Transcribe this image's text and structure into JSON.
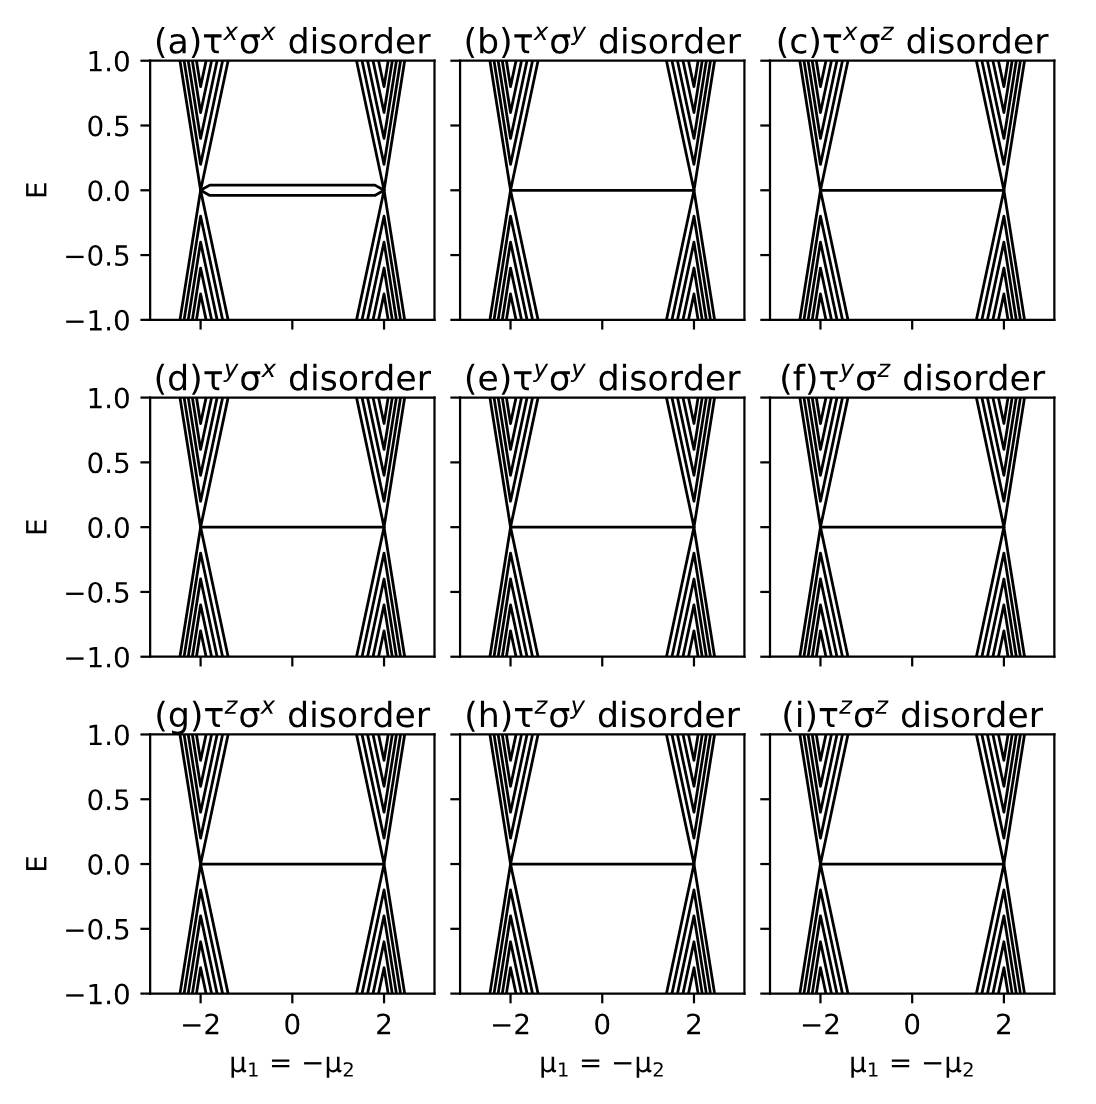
{
  "chart_data": [
    {
      "type": "line",
      "title": "(a)τ$^{x}$σ$^{x}$ disorder",
      "ylabel": "E",
      "tick_labels": "y",
      "xlim": [
        -3.1,
        3.1
      ],
      "ylim": [
        -1,
        1
      ],
      "xticks": [
        -2,
        0,
        2
      ],
      "yticks": [
        {
          "value": -1,
          "label": "−1.0"
        },
        {
          "value": -0.5,
          "label": "−0.5"
        },
        {
          "value": 0,
          "label": "0.0"
        },
        {
          "value": 0.5,
          "label": "0.5"
        },
        {
          "value": 1,
          "label": "1.0"
        }
      ],
      "series": [
        {
          "color": "#000000",
          "x": [
            -2.45,
            -2,
            -1.4,
            null,
            -2.36,
            -2,
            -1.52,
            null,
            -2.27,
            -2,
            -1.64,
            null,
            -2.18,
            -2,
            -1.76,
            null,
            -2.09,
            -2,
            -1.88
          ],
          "values": [
            1,
            0,
            1,
            null,
            1,
            0.2,
            1,
            null,
            1,
            0.4,
            1,
            null,
            1,
            0.6,
            1,
            null,
            1,
            0.8,
            1
          ]
        },
        {
          "color": "#000000",
          "x": [
            -2.45,
            -2,
            -1.4,
            null,
            -2.36,
            -2,
            -1.52,
            null,
            -2.27,
            -2,
            -1.64,
            null,
            -2.18,
            -2,
            -1.76,
            null,
            -2.09,
            -2,
            -1.88
          ],
          "values": [
            -1,
            0,
            -1,
            null,
            -1,
            -0.2,
            -1,
            null,
            -1,
            -0.4,
            -1,
            null,
            -1,
            -0.6,
            -1,
            null,
            -1,
            -0.8,
            -1
          ]
        },
        {
          "color": "#000000",
          "x": [
            1.4,
            2,
            2.45,
            null,
            1.52,
            2,
            2.36,
            null,
            1.64,
            2,
            2.27,
            null,
            1.76,
            2,
            2.18,
            null,
            1.88,
            2,
            2.09
          ],
          "values": [
            1,
            0,
            1,
            null,
            1,
            0.2,
            1,
            null,
            1,
            0.4,
            1,
            null,
            1,
            0.6,
            1,
            null,
            1,
            0.8,
            1
          ]
        },
        {
          "color": "#000000",
          "x": [
            1.4,
            2,
            2.45,
            null,
            1.52,
            2,
            2.36,
            null,
            1.64,
            2,
            2.27,
            null,
            1.76,
            2,
            2.18,
            null,
            1.88,
            2,
            2.09
          ],
          "values": [
            -1,
            0,
            -1,
            null,
            -1,
            -0.2,
            -1,
            null,
            -1,
            -0.4,
            -1,
            null,
            -1,
            -0.6,
            -1,
            null,
            -1,
            -0.8,
            -1
          ]
        },
        {
          "color": "#000000",
          "x": [
            -2,
            -1.8,
            0,
            1.8,
            2
          ],
          "values": [
            0,
            0.04,
            0.04,
            0.04,
            0
          ]
        },
        {
          "color": "#000000",
          "x": [
            -2,
            -1.8,
            0,
            1.8,
            2
          ],
          "values": [
            0,
            -0.04,
            -0.04,
            -0.04,
            0
          ]
        }
      ]
    },
    {
      "type": "line",
      "title": "(b)τ$^{x}$σ$^{y}$ disorder",
      "tick_labels": false,
      "xlim": [
        -3.1,
        3.1
      ],
      "ylim": [
        -1,
        1
      ],
      "xticks": [
        -2,
        0,
        2
      ],
      "yticks": [
        -1,
        -0.5,
        0,
        0.5,
        1
      ],
      "series": [
        {
          "color": "#000000",
          "x": [
            -2.45,
            -2,
            -1.4,
            null,
            -2.36,
            -2,
            -1.52,
            null,
            -2.27,
            -2,
            -1.64,
            null,
            -2.18,
            -2,
            -1.76,
            null,
            -2.09,
            -2,
            -1.88
          ],
          "values": [
            1,
            0,
            1,
            null,
            1,
            0.2,
            1,
            null,
            1,
            0.4,
            1,
            null,
            1,
            0.6,
            1,
            null,
            1,
            0.8,
            1
          ]
        },
        {
          "color": "#000000",
          "x": [
            -2.45,
            -2,
            -1.4,
            null,
            -2.36,
            -2,
            -1.52,
            null,
            -2.27,
            -2,
            -1.64,
            null,
            -2.18,
            -2,
            -1.76,
            null,
            -2.09,
            -2,
            -1.88
          ],
          "values": [
            -1,
            0,
            -1,
            null,
            -1,
            -0.2,
            -1,
            null,
            -1,
            -0.4,
            -1,
            null,
            -1,
            -0.6,
            -1,
            null,
            -1,
            -0.8,
            -1
          ]
        },
        {
          "color": "#000000",
          "x": [
            1.4,
            2,
            2.45,
            null,
            1.52,
            2,
            2.36,
            null,
            1.64,
            2,
            2.27,
            null,
            1.76,
            2,
            2.18,
            null,
            1.88,
            2,
            2.09
          ],
          "values": [
            1,
            0,
            1,
            null,
            1,
            0.2,
            1,
            null,
            1,
            0.4,
            1,
            null,
            1,
            0.6,
            1,
            null,
            1,
            0.8,
            1
          ]
        },
        {
          "color": "#000000",
          "x": [
            1.4,
            2,
            2.45,
            null,
            1.52,
            2,
            2.36,
            null,
            1.64,
            2,
            2.27,
            null,
            1.76,
            2,
            2.18,
            null,
            1.88,
            2,
            2.09
          ],
          "values": [
            -1,
            0,
            -1,
            null,
            -1,
            -0.2,
            -1,
            null,
            -1,
            -0.4,
            -1,
            null,
            -1,
            -0.6,
            -1,
            null,
            -1,
            -0.8,
            -1
          ]
        },
        {
          "color": "#000000",
          "x": [
            -2,
            2
          ],
          "values": [
            0,
            0
          ]
        }
      ]
    },
    {
      "type": "line",
      "title": "(c)τ$^{x}$σ$^{z}$ disorder",
      "tick_labels": false,
      "xlim": [
        -3.1,
        3.1
      ],
      "ylim": [
        -1,
        1
      ],
      "xticks": [
        -2,
        0,
        2
      ],
      "yticks": [
        -1,
        -0.5,
        0,
        0.5,
        1
      ],
      "series": [
        {
          "color": "#000000",
          "x": [
            -2.45,
            -2,
            -1.4,
            null,
            -2.36,
            -2,
            -1.52,
            null,
            -2.27,
            -2,
            -1.64,
            null,
            -2.18,
            -2,
            -1.76,
            null,
            -2.09,
            -2,
            -1.88
          ],
          "values": [
            1,
            0,
            1,
            null,
            1,
            0.2,
            1,
            null,
            1,
            0.4,
            1,
            null,
            1,
            0.6,
            1,
            null,
            1,
            0.8,
            1
          ]
        },
        {
          "color": "#000000",
          "x": [
            -2.45,
            -2,
            -1.4,
            null,
            -2.36,
            -2,
            -1.52,
            null,
            -2.27,
            -2,
            -1.64,
            null,
            -2.18,
            -2,
            -1.76,
            null,
            -2.09,
            -2,
            -1.88
          ],
          "values": [
            -1,
            0,
            -1,
            null,
            -1,
            -0.2,
            -1,
            null,
            -1,
            -0.4,
            -1,
            null,
            -1,
            -0.6,
            -1,
            null,
            -1,
            -0.8,
            -1
          ]
        },
        {
          "color": "#000000",
          "x": [
            1.4,
            2,
            2.45,
            null,
            1.52,
            2,
            2.36,
            null,
            1.64,
            2,
            2.27,
            null,
            1.76,
            2,
            2.18,
            null,
            1.88,
            2,
            2.09
          ],
          "values": [
            1,
            0,
            1,
            null,
            1,
            0.2,
            1,
            null,
            1,
            0.4,
            1,
            null,
            1,
            0.6,
            1,
            null,
            1,
            0.8,
            1
          ]
        },
        {
          "color": "#000000",
          "x": [
            1.4,
            2,
            2.45,
            null,
            1.52,
            2,
            2.36,
            null,
            1.64,
            2,
            2.27,
            null,
            1.76,
            2,
            2.18,
            null,
            1.88,
            2,
            2.09
          ],
          "values": [
            -1,
            0,
            -1,
            null,
            -1,
            -0.2,
            -1,
            null,
            -1,
            -0.4,
            -1,
            null,
            -1,
            -0.6,
            -1,
            null,
            -1,
            -0.8,
            -1
          ]
        },
        {
          "color": "#000000",
          "x": [
            -2,
            2
          ],
          "values": [
            0,
            0
          ]
        }
      ]
    },
    {
      "type": "line",
      "title": "(d)τ$^{y}$σ$^{x}$ disorder",
      "ylabel": "E",
      "tick_labels": "y",
      "xlim": [
        -3.1,
        3.1
      ],
      "ylim": [
        -1,
        1
      ],
      "xticks": [
        -2,
        0,
        2
      ],
      "yticks": [
        {
          "value": -1,
          "label": "−1.0"
        },
        {
          "value": -0.5,
          "label": "−0.5"
        },
        {
          "value": 0,
          "label": "0.0"
        },
        {
          "value": 0.5,
          "label": "0.5"
        },
        {
          "value": 1,
          "label": "1.0"
        }
      ],
      "series": [
        {
          "color": "#000000",
          "x": [
            -2.45,
            -2,
            -1.4,
            null,
            -2.36,
            -2,
            -1.52,
            null,
            -2.27,
            -2,
            -1.64,
            null,
            -2.18,
            -2,
            -1.76,
            null,
            -2.09,
            -2,
            -1.88
          ],
          "values": [
            1,
            0,
            1,
            null,
            1,
            0.2,
            1,
            null,
            1,
            0.4,
            1,
            null,
            1,
            0.6,
            1,
            null,
            1,
            0.8,
            1
          ]
        },
        {
          "color": "#000000",
          "x": [
            -2.45,
            -2,
            -1.4,
            null,
            -2.36,
            -2,
            -1.52,
            null,
            -2.27,
            -2,
            -1.64,
            null,
            -2.18,
            -2,
            -1.76,
            null,
            -2.09,
            -2,
            -1.88
          ],
          "values": [
            -1,
            0,
            -1,
            null,
            -1,
            -0.2,
            -1,
            null,
            -1,
            -0.4,
            -1,
            null,
            -1,
            -0.6,
            -1,
            null,
            -1,
            -0.8,
            -1
          ]
        },
        {
          "color": "#000000",
          "x": [
            1.4,
            2,
            2.45,
            null,
            1.52,
            2,
            2.36,
            null,
            1.64,
            2,
            2.27,
            null,
            1.76,
            2,
            2.18,
            null,
            1.88,
            2,
            2.09
          ],
          "values": [
            1,
            0,
            1,
            null,
            1,
            0.2,
            1,
            null,
            1,
            0.4,
            1,
            null,
            1,
            0.6,
            1,
            null,
            1,
            0.8,
            1
          ]
        },
        {
          "color": "#000000",
          "x": [
            1.4,
            2,
            2.45,
            null,
            1.52,
            2,
            2.36,
            null,
            1.64,
            2,
            2.27,
            null,
            1.76,
            2,
            2.18,
            null,
            1.88,
            2,
            2.09
          ],
          "values": [
            -1,
            0,
            -1,
            null,
            -1,
            -0.2,
            -1,
            null,
            -1,
            -0.4,
            -1,
            null,
            -1,
            -0.6,
            -1,
            null,
            -1,
            -0.8,
            -1
          ]
        },
        {
          "color": "#000000",
          "x": [
            -2,
            2
          ],
          "values": [
            0,
            0
          ]
        }
      ]
    },
    {
      "type": "line",
      "title": "(e)τ$^{y}$σ$^{y}$ disorder",
      "tick_labels": false,
      "xlim": [
        -3.1,
        3.1
      ],
      "ylim": [
        -1,
        1
      ],
      "xticks": [
        -2,
        0,
        2
      ],
      "yticks": [
        -1,
        -0.5,
        0,
        0.5,
        1
      ],
      "series": [
        {
          "color": "#000000",
          "x": [
            -2.45,
            -2,
            -1.4,
            null,
            -2.36,
            -2,
            -1.52,
            null,
            -2.27,
            -2,
            -1.64,
            null,
            -2.18,
            -2,
            -1.76,
            null,
            -2.09,
            -2,
            -1.88
          ],
          "values": [
            1,
            0,
            1,
            null,
            1,
            0.2,
            1,
            null,
            1,
            0.4,
            1,
            null,
            1,
            0.6,
            1,
            null,
            1,
            0.8,
            1
          ]
        },
        {
          "color": "#000000",
          "x": [
            -2.45,
            -2,
            -1.4,
            null,
            -2.36,
            -2,
            -1.52,
            null,
            -2.27,
            -2,
            -1.64,
            null,
            -2.18,
            -2,
            -1.76,
            null,
            -2.09,
            -2,
            -1.88
          ],
          "values": [
            -1,
            0,
            -1,
            null,
            -1,
            -0.2,
            -1,
            null,
            -1,
            -0.4,
            -1,
            null,
            -1,
            -0.6,
            -1,
            null,
            -1,
            -0.8,
            -1
          ]
        },
        {
          "color": "#000000",
          "x": [
            1.4,
            2,
            2.45,
            null,
            1.52,
            2,
            2.36,
            null,
            1.64,
            2,
            2.27,
            null,
            1.76,
            2,
            2.18,
            null,
            1.88,
            2,
            2.09
          ],
          "values": [
            1,
            0,
            1,
            null,
            1,
            0.2,
            1,
            null,
            1,
            0.4,
            1,
            null,
            1,
            0.6,
            1,
            null,
            1,
            0.8,
            1
          ]
        },
        {
          "color": "#000000",
          "x": [
            1.4,
            2,
            2.45,
            null,
            1.52,
            2,
            2.36,
            null,
            1.64,
            2,
            2.27,
            null,
            1.76,
            2,
            2.18,
            null,
            1.88,
            2,
            2.09
          ],
          "values": [
            -1,
            0,
            -1,
            null,
            -1,
            -0.2,
            -1,
            null,
            -1,
            -0.4,
            -1,
            null,
            -1,
            -0.6,
            -1,
            null,
            -1,
            -0.8,
            -1
          ]
        },
        {
          "color": "#000000",
          "x": [
            -2,
            2
          ],
          "values": [
            0,
            0
          ]
        }
      ]
    },
    {
      "type": "line",
      "title": "(f)τ$^{y}$σ$^{z}$ disorder",
      "tick_labels": false,
      "xlim": [
        -3.1,
        3.1
      ],
      "ylim": [
        -1,
        1
      ],
      "xticks": [
        -2,
        0,
        2
      ],
      "yticks": [
        -1,
        -0.5,
        0,
        0.5,
        1
      ],
      "series": [
        {
          "color": "#000000",
          "x": [
            -2.45,
            -2,
            -1.4,
            null,
            -2.36,
            -2,
            -1.52,
            null,
            -2.27,
            -2,
            -1.64,
            null,
            -2.18,
            -2,
            -1.76,
            null,
            -2.09,
            -2,
            -1.88
          ],
          "values": [
            1,
            0,
            1,
            null,
            1,
            0.2,
            1,
            null,
            1,
            0.4,
            1,
            null,
            1,
            0.6,
            1,
            null,
            1,
            0.8,
            1
          ]
        },
        {
          "color": "#000000",
          "x": [
            -2.45,
            -2,
            -1.4,
            null,
            -2.36,
            -2,
            -1.52,
            null,
            -2.27,
            -2,
            -1.64,
            null,
            -2.18,
            -2,
            -1.76,
            null,
            -2.09,
            -2,
            -1.88
          ],
          "values": [
            -1,
            0,
            -1,
            null,
            -1,
            -0.2,
            -1,
            null,
            -1,
            -0.4,
            -1,
            null,
            -1,
            -0.6,
            -1,
            null,
            -1,
            -0.8,
            -1
          ]
        },
        {
          "color": "#000000",
          "x": [
            1.4,
            2,
            2.45,
            null,
            1.52,
            2,
            2.36,
            null,
            1.64,
            2,
            2.27,
            null,
            1.76,
            2,
            2.18,
            null,
            1.88,
            2,
            2.09
          ],
          "values": [
            1,
            0,
            1,
            null,
            1,
            0.2,
            1,
            null,
            1,
            0.4,
            1,
            null,
            1,
            0.6,
            1,
            null,
            1,
            0.8,
            1
          ]
        },
        {
          "color": "#000000",
          "x": [
            1.4,
            2,
            2.45,
            null,
            1.52,
            2,
            2.36,
            null,
            1.64,
            2,
            2.27,
            null,
            1.76,
            2,
            2.18,
            null,
            1.88,
            2,
            2.09
          ],
          "values": [
            -1,
            0,
            -1,
            null,
            -1,
            -0.2,
            -1,
            null,
            -1,
            -0.4,
            -1,
            null,
            -1,
            -0.6,
            -1,
            null,
            -1,
            -0.8,
            -1
          ]
        },
        {
          "color": "#000000",
          "x": [
            -2,
            2
          ],
          "values": [
            0,
            0
          ]
        }
      ]
    },
    {
      "type": "line",
      "title": "(g)τ$^{z}$σ$^{x}$ disorder",
      "ylabel": "E",
      "xlabel": "μ$_{1}$ = −μ$_{2}$",
      "xlim": [
        -3.1,
        3.1
      ],
      "ylim": [
        -1,
        1
      ],
      "xticks": [
        -2,
        0,
        2
      ],
      "yticks": [
        {
          "value": -1,
          "label": "−1.0"
        },
        {
          "value": -0.5,
          "label": "−0.5"
        },
        {
          "value": 0,
          "label": "0.0"
        },
        {
          "value": 0.5,
          "label": "0.5"
        },
        {
          "value": 1,
          "label": "1.0"
        }
      ],
      "series": [
        {
          "color": "#000000",
          "x": [
            -2.45,
            -2,
            -1.4,
            null,
            -2.36,
            -2,
            -1.52,
            null,
            -2.27,
            -2,
            -1.64,
            null,
            -2.18,
            -2,
            -1.76,
            null,
            -2.09,
            -2,
            -1.88
          ],
          "values": [
            1,
            0,
            1,
            null,
            1,
            0.2,
            1,
            null,
            1,
            0.4,
            1,
            null,
            1,
            0.6,
            1,
            null,
            1,
            0.8,
            1
          ]
        },
        {
          "color": "#000000",
          "x": [
            -2.45,
            -2,
            -1.4,
            null,
            -2.36,
            -2,
            -1.52,
            null,
            -2.27,
            -2,
            -1.64,
            null,
            -2.18,
            -2,
            -1.76,
            null,
            -2.09,
            -2,
            -1.88
          ],
          "values": [
            -1,
            0,
            -1,
            null,
            -1,
            -0.2,
            -1,
            null,
            -1,
            -0.4,
            -1,
            null,
            -1,
            -0.6,
            -1,
            null,
            -1,
            -0.8,
            -1
          ]
        },
        {
          "color": "#000000",
          "x": [
            1.4,
            2,
            2.45,
            null,
            1.52,
            2,
            2.36,
            null,
            1.64,
            2,
            2.27,
            null,
            1.76,
            2,
            2.18,
            null,
            1.88,
            2,
            2.09
          ],
          "values": [
            1,
            0,
            1,
            null,
            1,
            0.2,
            1,
            null,
            1,
            0.4,
            1,
            null,
            1,
            0.6,
            1,
            null,
            1,
            0.8,
            1
          ]
        },
        {
          "color": "#000000",
          "x": [
            1.4,
            2,
            2.45,
            null,
            1.52,
            2,
            2.36,
            null,
            1.64,
            2,
            2.27,
            null,
            1.76,
            2,
            2.18,
            null,
            1.88,
            2,
            2.09
          ],
          "values": [
            -1,
            0,
            -1,
            null,
            -1,
            -0.2,
            -1,
            null,
            -1,
            -0.4,
            -1,
            null,
            -1,
            -0.6,
            -1,
            null,
            -1,
            -0.8,
            -1
          ]
        },
        {
          "color": "#000000",
          "x": [
            -2,
            2
          ],
          "values": [
            0,
            0
          ]
        }
      ]
    },
    {
      "type": "line",
      "title": "(h)τ$^{z}$σ$^{y}$ disorder",
      "xlabel": "μ$_{1}$ = −μ$_{2}$",
      "tick_labels": "x",
      "xlim": [
        -3.1,
        3.1
      ],
      "ylim": [
        -1,
        1
      ],
      "xticks": [
        -2,
        0,
        2
      ],
      "yticks": [
        -1,
        -0.5,
        0,
        0.5,
        1
      ],
      "series": [
        {
          "color": "#000000",
          "x": [
            -2.45,
            -2,
            -1.4,
            null,
            -2.36,
            -2,
            -1.52,
            null,
            -2.27,
            -2,
            -1.64,
            null,
            -2.18,
            -2,
            -1.76,
            null,
            -2.09,
            -2,
            -1.88
          ],
          "values": [
            1,
            0,
            1,
            null,
            1,
            0.2,
            1,
            null,
            1,
            0.4,
            1,
            null,
            1,
            0.6,
            1,
            null,
            1,
            0.8,
            1
          ]
        },
        {
          "color": "#000000",
          "x": [
            -2.45,
            -2,
            -1.4,
            null,
            -2.36,
            -2,
            -1.52,
            null,
            -2.27,
            -2,
            -1.64,
            null,
            -2.18,
            -2,
            -1.76,
            null,
            -2.09,
            -2,
            -1.88
          ],
          "values": [
            -1,
            0,
            -1,
            null,
            -1,
            -0.2,
            -1,
            null,
            -1,
            -0.4,
            -1,
            null,
            -1,
            -0.6,
            -1,
            null,
            -1,
            -0.8,
            -1
          ]
        },
        {
          "color": "#000000",
          "x": [
            1.4,
            2,
            2.45,
            null,
            1.52,
            2,
            2.36,
            null,
            1.64,
            2,
            2.27,
            null,
            1.76,
            2,
            2.18,
            null,
            1.88,
            2,
            2.09
          ],
          "values": [
            1,
            0,
            1,
            null,
            1,
            0.2,
            1,
            null,
            1,
            0.4,
            1,
            null,
            1,
            0.6,
            1,
            null,
            1,
            0.8,
            1
          ]
        },
        {
          "color": "#000000",
          "x": [
            1.4,
            2,
            2.45,
            null,
            1.52,
            2,
            2.36,
            null,
            1.64,
            2,
            2.27,
            null,
            1.76,
            2,
            2.18,
            null,
            1.88,
            2,
            2.09
          ],
          "values": [
            -1,
            0,
            -1,
            null,
            -1,
            -0.2,
            -1,
            null,
            -1,
            -0.4,
            -1,
            null,
            -1,
            -0.6,
            -1,
            null,
            -1,
            -0.8,
            -1
          ]
        },
        {
          "color": "#000000",
          "x": [
            -2,
            2
          ],
          "values": [
            0,
            0
          ]
        }
      ]
    },
    {
      "type": "line",
      "title": "(i)τ$^{z}$σ$^{z}$ disorder",
      "xlabel": "μ$_{1}$ = −μ$_{2}$",
      "tick_labels": "x",
      "xlim": [
        -3.1,
        3.1
      ],
      "ylim": [
        -1,
        1
      ],
      "xticks": [
        -2,
        0,
        2
      ],
      "yticks": [
        -1,
        -0.5,
        0,
        0.5,
        1
      ],
      "series": [
        {
          "color": "#000000",
          "x": [
            -2.45,
            -2,
            -1.4,
            null,
            -2.36,
            -2,
            -1.52,
            null,
            -2.27,
            -2,
            -1.64,
            null,
            -2.18,
            -2,
            -1.76,
            null,
            -2.09,
            -2,
            -1.88
          ],
          "values": [
            1,
            0,
            1,
            null,
            1,
            0.2,
            1,
            null,
            1,
            0.4,
            1,
            null,
            1,
            0.6,
            1,
            null,
            1,
            0.8,
            1
          ]
        },
        {
          "color": "#000000",
          "x": [
            -2.45,
            -2,
            -1.4,
            null,
            -2.36,
            -2,
            -1.52,
            null,
            -2.27,
            -2,
            -1.64,
            null,
            -2.18,
            -2,
            -1.76,
            null,
            -2.09,
            -2,
            -1.88
          ],
          "values": [
            -1,
            0,
            -1,
            null,
            -1,
            -0.2,
            -1,
            null,
            -1,
            -0.4,
            -1,
            null,
            -1,
            -0.6,
            -1,
            null,
            -1,
            -0.8,
            -1
          ]
        },
        {
          "color": "#000000",
          "x": [
            1.4,
            2,
            2.45,
            null,
            1.52,
            2,
            2.36,
            null,
            1.64,
            2,
            2.27,
            null,
            1.76,
            2,
            2.18,
            null,
            1.88,
            2,
            2.09
          ],
          "values": [
            1,
            0,
            1,
            null,
            1,
            0.2,
            1,
            null,
            1,
            0.4,
            1,
            null,
            1,
            0.6,
            1,
            null,
            1,
            0.8,
            1
          ]
        },
        {
          "color": "#000000",
          "x": [
            1.4,
            2,
            2.45,
            null,
            1.52,
            2,
            2.36,
            null,
            1.64,
            2,
            2.27,
            null,
            1.76,
            2,
            2.18,
            null,
            1.88,
            2,
            2.09
          ],
          "values": [
            -1,
            0,
            -1,
            null,
            -1,
            -0.2,
            -1,
            null,
            -1,
            -0.4,
            -1,
            null,
            -1,
            -0.6,
            -1,
            null,
            -1,
            -0.8,
            -1
          ]
        },
        {
          "color": "#000000",
          "x": [
            -2,
            2
          ],
          "values": [
            0,
            0
          ]
        }
      ]
    }
  ]
}
